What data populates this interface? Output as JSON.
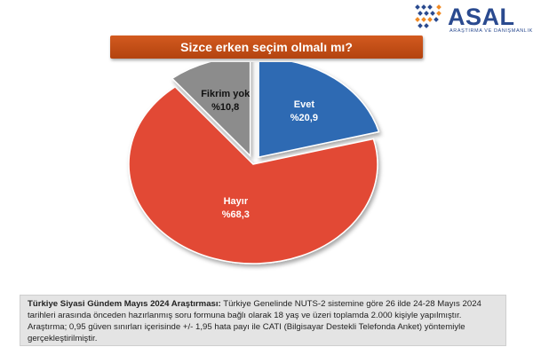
{
  "brand": {
    "name": "ASAL",
    "tagline": "ARAŞTIRMA VE DANIŞMANLIK",
    "color": "#2a4a8f",
    "icon": "asal-logo-icon"
  },
  "title": "Sizce erken seçim olmalı mı?",
  "colors": {
    "title_bar": "#c24d17",
    "evet": "#2e6ab3",
    "hayir": "#e24a35",
    "fikrim_yok": "#8c8c8c",
    "note_bg": "#e4e4e4"
  },
  "chart_data": {
    "type": "pie",
    "title": "Sizce erken seçim olmalı mı?",
    "slices": [
      {
        "label": "Evet",
        "value": 20.9,
        "display": "%20,9",
        "color": "#2e6ab3"
      },
      {
        "label": "Hayır",
        "value": 68.3,
        "display": "%68,3",
        "color": "#e24a35"
      },
      {
        "label": "Fikrim yok",
        "value": 10.8,
        "display": "%10,8",
        "color": "#8c8c8c"
      }
    ]
  },
  "note": {
    "heading": "Türkiye Siyasi Gündem Mayıs 2024 Araştırması:",
    "body": " Türkiye Genelinde NUTS-2 sistemine göre 26 ilde 24-28 Mayıs 2024 tarihleri arasında önceden hazırlanmış soru formuna bağlı olarak 18 yaş ve üzeri toplamda 2.000 kişiyle yapılmıştır. Araştırma; 0,95 güven sınırları içerisinde +/- 1,95 hata payı ile CATI (Bilgisayar Destekli Telefonda Anket) yöntemiyle gerçekleştirilmiştir."
  }
}
